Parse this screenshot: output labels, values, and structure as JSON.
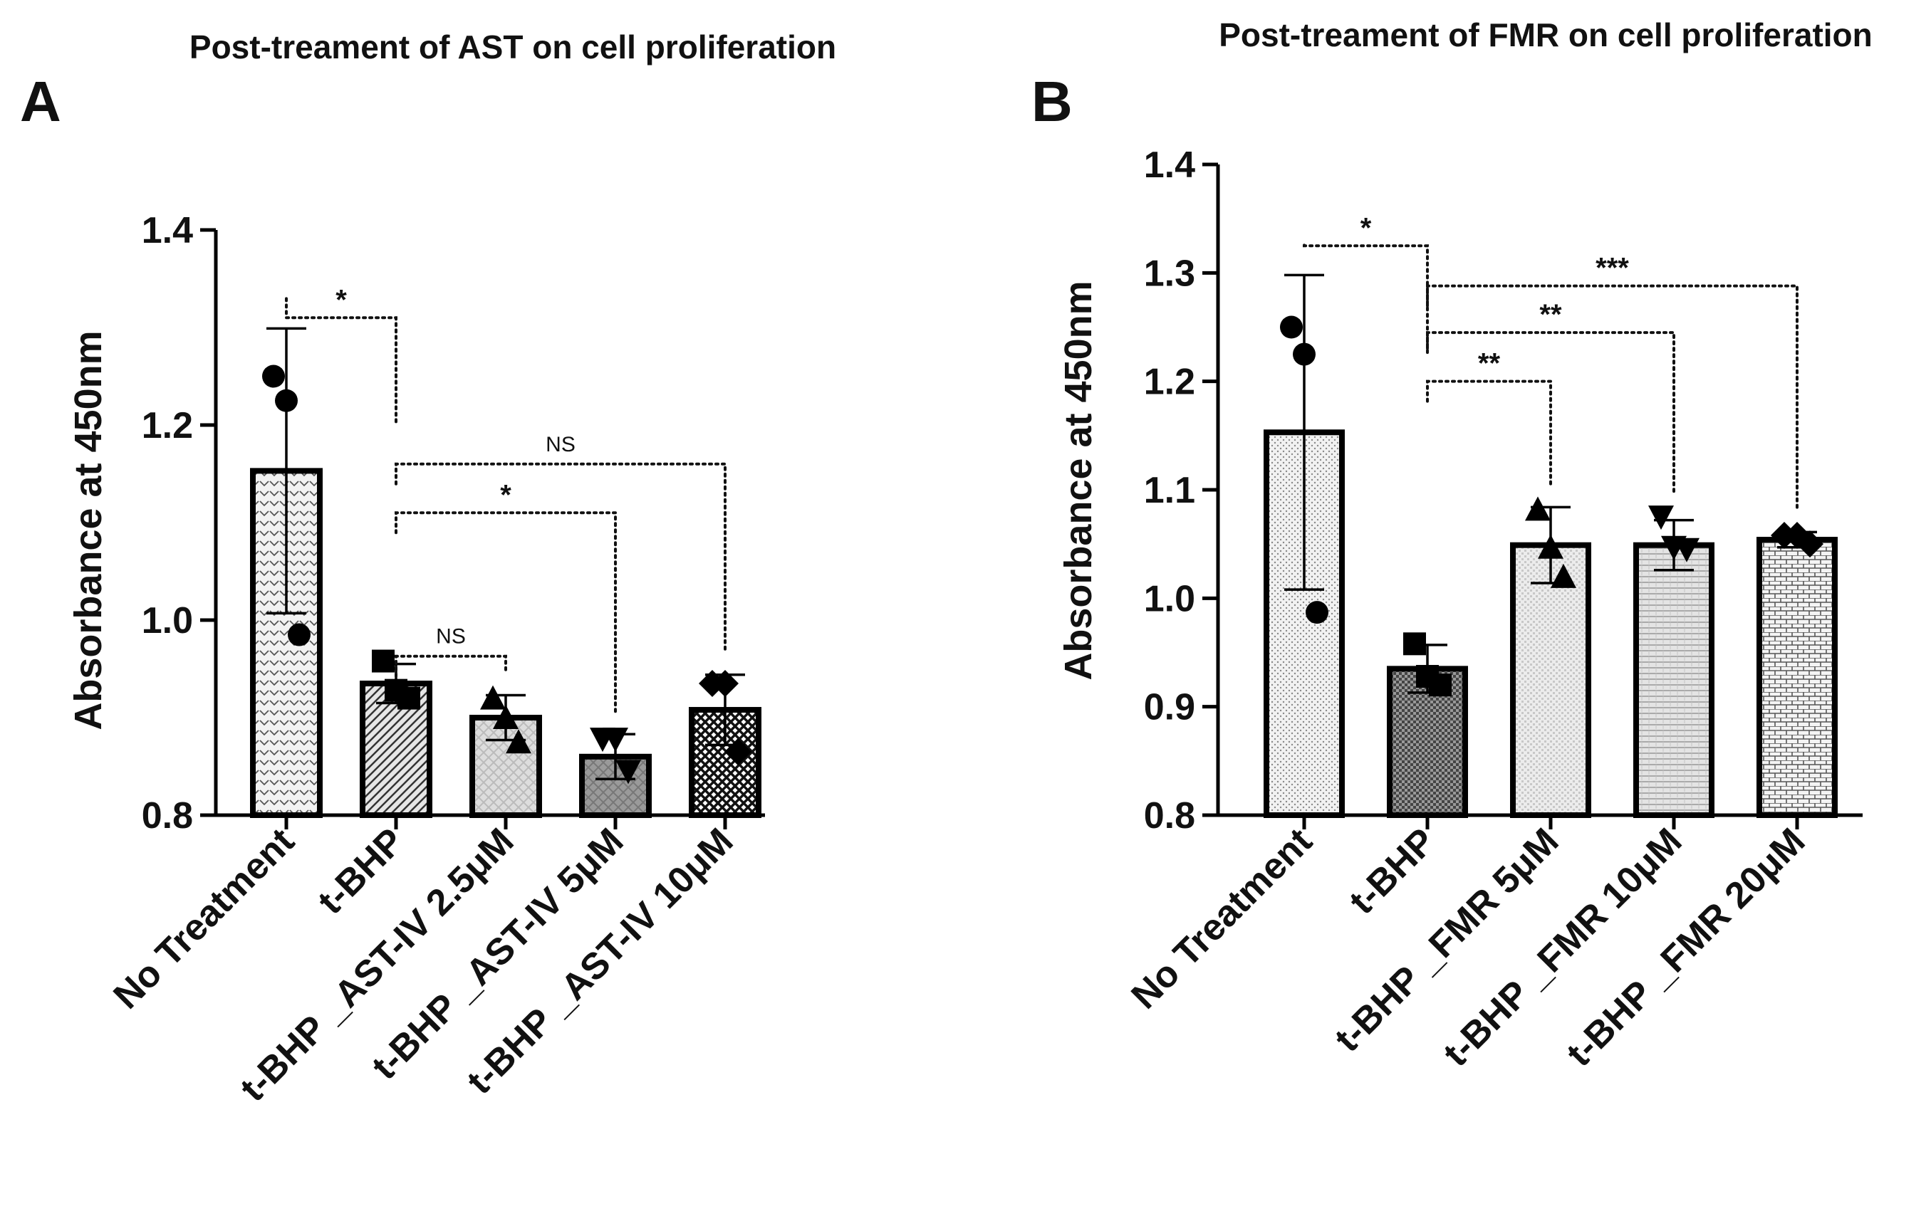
{
  "chart_data": [
    {
      "panel": "A",
      "type": "bar",
      "title": "Post-treament of AST on cell proliferation",
      "ylabel": "Absorbance at 450nm",
      "xlabel": "",
      "ylim": [
        0.8,
        1.4
      ],
      "yticks": [
        "0.8",
        "1.0",
        "1.2",
        "1.4"
      ],
      "categories": [
        "No Treatment",
        "t-BHP",
        "t-BHP _AST-IV 2.5μM",
        "t-BHP _AST-IV 5μM",
        "t-BHP _AST-IV 10μM"
      ],
      "values": [
        1.153,
        0.935,
        0.9,
        0.86,
        0.908
      ],
      "errors": [
        0.146,
        0.02,
        0.023,
        0.023,
        0.036
      ],
      "points": [
        [
          1.25,
          1.225,
          0.985
        ],
        [
          0.958,
          0.928,
          0.92
        ],
        [
          0.92,
          0.9,
          0.875
        ],
        [
          0.878,
          0.878,
          0.845
        ],
        [
          0.935,
          0.935,
          0.865
        ]
      ],
      "markers": [
        "circle",
        "square",
        "triangle-up",
        "triangle-down",
        "diamond"
      ],
      "patterns": [
        "pa-chevron",
        "pa-diag",
        "pa-grid",
        "pa-cross",
        "pa-dense"
      ],
      "comparisons": [
        {
          "from": 0,
          "to": 1,
          "label": "*",
          "y": 1.31
        },
        {
          "from": 1,
          "to": 2,
          "label": "NS",
          "y": 0.963
        },
        {
          "from": 1,
          "to": 3,
          "label": "*",
          "y": 1.11
        },
        {
          "from": 1,
          "to": 4,
          "label": "NS",
          "y": 1.16
        }
      ]
    },
    {
      "panel": "B",
      "type": "bar",
      "title": "Post-treament of FMR on cell proliferation",
      "ylabel": "Absorbance at 450nm",
      "xlabel": "",
      "ylim": [
        0.8,
        1.4
      ],
      "yticks": [
        "0.8",
        "0.9",
        "1.0",
        "1.1",
        "1.2",
        "1.3",
        "1.4"
      ],
      "categories": [
        "No Treatment",
        "t-BHP",
        "t-BHP _FMR 5μM",
        "t-BHP _FMR 10μM",
        "t-BHP _FMR 20μM"
      ],
      "values": [
        1.153,
        0.935,
        1.049,
        1.049,
        1.054
      ],
      "errors": [
        0.145,
        0.022,
        0.035,
        0.023,
        0.007
      ],
      "points": [
        [
          1.25,
          1.225,
          0.987
        ],
        [
          0.958,
          0.928,
          0.92
        ],
        [
          1.082,
          1.047,
          1.02
        ],
        [
          1.075,
          1.047,
          1.045
        ],
        [
          1.058,
          1.058,
          1.05
        ]
      ],
      "markers": [
        "circle",
        "square",
        "triangle-up",
        "triangle-down",
        "diamond"
      ],
      "patterns": [
        "pb-dots",
        "pb-dense",
        "pb-light",
        "pb-hstripe",
        "pb-brick"
      ],
      "comparisons": [
        {
          "from": 0,
          "to": 1,
          "label": "*",
          "y": 1.325
        },
        {
          "from": 1,
          "to": 2,
          "label": "**",
          "y": 1.2
        },
        {
          "from": 1,
          "to": 3,
          "label": "**",
          "y": 1.245
        },
        {
          "from": 1,
          "to": 4,
          "label": "***",
          "y": 1.288
        }
      ]
    }
  ]
}
